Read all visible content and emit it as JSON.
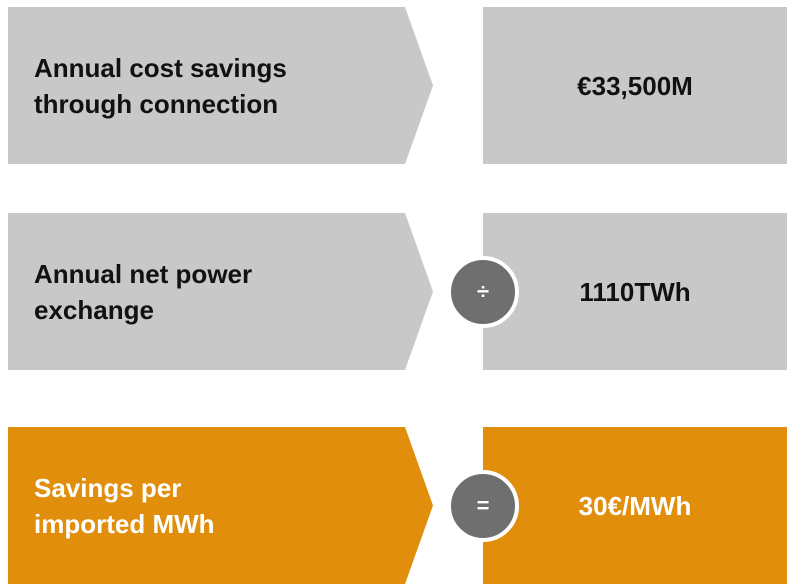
{
  "rows": [
    {
      "label": [
        "Annual cost savings",
        "through connection"
      ],
      "value": "€33,500M"
    },
    {
      "label": [
        "Annual net power",
        "exchange"
      ],
      "operator": "÷",
      "value": "1110TWh"
    },
    {
      "label": [
        "Savings per",
        "imported MWh"
      ],
      "operator": "=",
      "value": "30€/MWh",
      "highlight": true
    }
  ]
}
